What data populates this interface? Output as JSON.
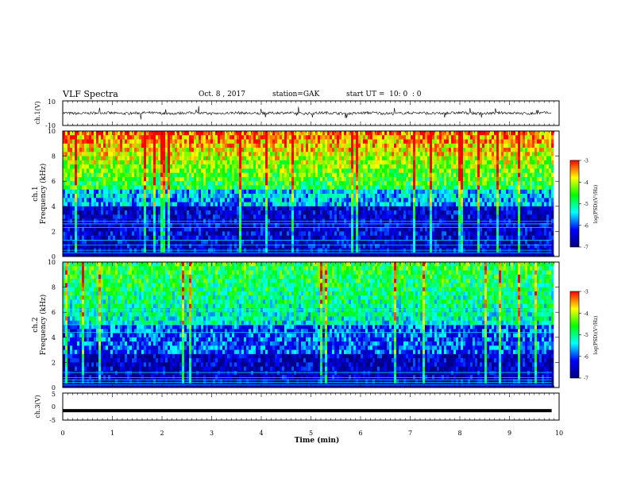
{
  "header": {
    "title": "VLF Spectra",
    "date": "Oct. 8 , 2017",
    "station": "station=GAK",
    "start_ut": "start UT =  10: 0  : 0"
  },
  "chart_data": [
    {
      "type": "line",
      "panel": "ch1-waveform",
      "ylabel": "ch.1(V)",
      "ylim": [
        -10,
        10
      ],
      "y_ticks": [
        "10",
        "-10"
      ],
      "xlim": [
        0,
        10
      ],
      "note_values": "continuous noise signal around 0 V with spikes; individual samples not readable"
    },
    {
      "type": "heatmap",
      "panel": "ch1-spectrogram",
      "ylabel": "ch.1\nFrequency (kHz)",
      "ylim": [
        0,
        10
      ],
      "y_ticks": [
        "0",
        "2",
        "4",
        "6",
        "8",
        "10"
      ],
      "xlim": [
        0,
        9.85
      ],
      "colorbar": {
        "label": "log(PSD)(V²/Hz)",
        "range": [
          -7,
          -3
        ],
        "ticks": [
          "-3",
          "-4",
          "-5",
          "-6",
          "-7"
        ]
      }
    },
    {
      "type": "heatmap",
      "panel": "ch2-spectrogram",
      "ylabel": "ch.2\nFrequency (kHz)",
      "ylim": [
        0,
        10
      ],
      "y_ticks": [
        "0",
        "2",
        "4",
        "6",
        "8",
        "10"
      ],
      "xlim": [
        0,
        9.85
      ],
      "colorbar": {
        "label": "log(PSD)(V²/Hz)",
        "range": [
          -7,
          -3
        ],
        "ticks": [
          "-3",
          "-4",
          "-5",
          "-6",
          "-7"
        ]
      }
    },
    {
      "type": "line",
      "panel": "ch3-waveform",
      "ylabel": "ch.3(V)",
      "ylim": [
        -5,
        5
      ],
      "y_ticks": [
        "5",
        "0",
        "-5"
      ],
      "xlim": [
        0,
        10
      ],
      "value": -1.5
    }
  ],
  "x_axis": {
    "label": "Time (min)",
    "ticks": [
      "0",
      "1",
      "2",
      "3",
      "4",
      "5",
      "6",
      "7",
      "8",
      "9",
      "10"
    ]
  },
  "colors": {
    "colormap": [
      "#000080",
      "#0000ff",
      "#00ffff",
      "#00ff00",
      "#ffff00",
      "#ff0000"
    ]
  }
}
